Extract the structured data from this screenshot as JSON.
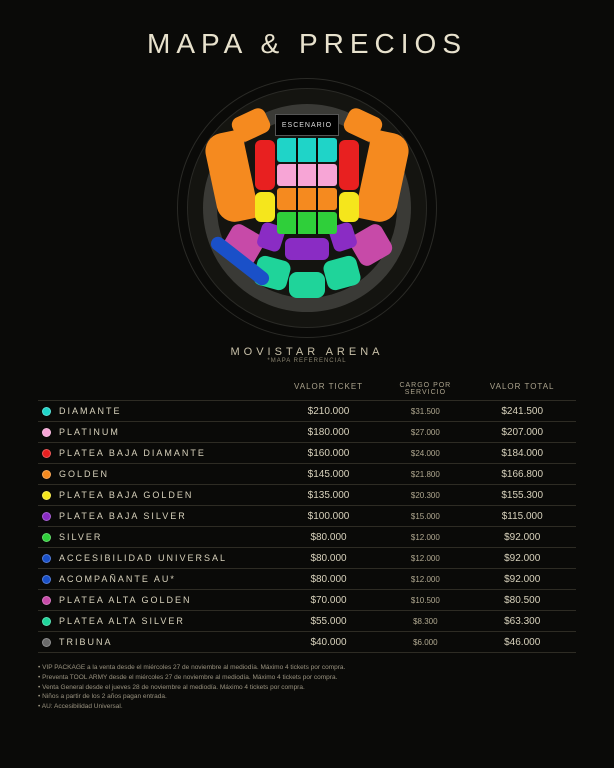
{
  "title": "MAPA & PRECIOS",
  "stage_label": "ESCENARIO",
  "venue": "MOVISTAR ARENA",
  "reference": "*MAPA REFERENCIAL",
  "headers": {
    "c2": "VALOR TICKET",
    "c3": "CARGO POR SERVICIO",
    "c4": "VALOR TOTAL"
  },
  "rows": [
    {
      "color": "#1fd4c8",
      "name": "DIAMANTE",
      "ticket": "$210.000",
      "fee": "$31.500",
      "total": "$241.500"
    },
    {
      "color": "#f7a5d6",
      "name": "PLATINUM",
      "ticket": "$180.000",
      "fee": "$27.000",
      "total": "$207.000"
    },
    {
      "color": "#e82020",
      "name": "PLATEA BAJA DIAMANTE",
      "ticket": "$160.000",
      "fee": "$24.000",
      "total": "$184.000"
    },
    {
      "color": "#f58a1f",
      "name": "GOLDEN",
      "ticket": "$145.000",
      "fee": "$21.800",
      "total": "$166.800"
    },
    {
      "color": "#f5e61c",
      "name": "PLATEA BAJA GOLDEN",
      "ticket": "$135.000",
      "fee": "$20.300",
      "total": "$155.300"
    },
    {
      "color": "#8a2cc4",
      "name": "PLATEA BAJA SILVER",
      "ticket": "$100.000",
      "fee": "$15.000",
      "total": "$115.000"
    },
    {
      "color": "#2fcf3a",
      "name": "SILVER",
      "ticket": "$80.000",
      "fee": "$12.000",
      "total": "$92.000"
    },
    {
      "color": "#1a50c8",
      "name": "ACCESIBILIDAD UNIVERSAL",
      "ticket": "$80.000",
      "fee": "$12.000",
      "total": "$92.000"
    },
    {
      "color": "#1a50c8",
      "name": "ACOMPAÑANTE AU*",
      "ticket": "$80.000",
      "fee": "$12.000",
      "total": "$92.000"
    },
    {
      "color": "#c74aa8",
      "name": "PLATEA ALTA GOLDEN",
      "ticket": "$70.000",
      "fee": "$10.500",
      "total": "$80.500"
    },
    {
      "color": "#1fd49a",
      "name": "PLATEA ALTA SILVER",
      "ticket": "$55.000",
      "fee": "$8.300",
      "total": "$63.300"
    },
    {
      "color": "#6a6a6a",
      "name": "TRIBUNA",
      "ticket": "$40.000",
      "fee": "$6.000",
      "total": "$46.000"
    }
  ],
  "notes": [
    "VIP PACKAGE a la venta desde el miércoles 27 de noviembre al mediodía. Máximo 4 tickets por compra.",
    "Preventa TOOL ARMY desde el miércoles 27 de noviembre al mediodía. Máximo 4 tickets por compra.",
    "Venta General desde el jueves 28 de noviembre al mediodía. Máximo 4 tickets por compra.",
    "Niños a partir de los 2 años pagan entrada.",
    "AU: Accesibilidad Universal."
  ],
  "map_colors": {
    "diamante": "#1fd4c8",
    "platinum": "#f7a5d6",
    "red": "#e82020",
    "golden": "#f58a1f",
    "yellow": "#f5e61c",
    "purple": "#8a2cc4",
    "silver": "#2fcf3a",
    "blue": "#1a50c8",
    "magenta": "#c74aa8",
    "teal": "#1fd49a",
    "grey": "#404040"
  }
}
